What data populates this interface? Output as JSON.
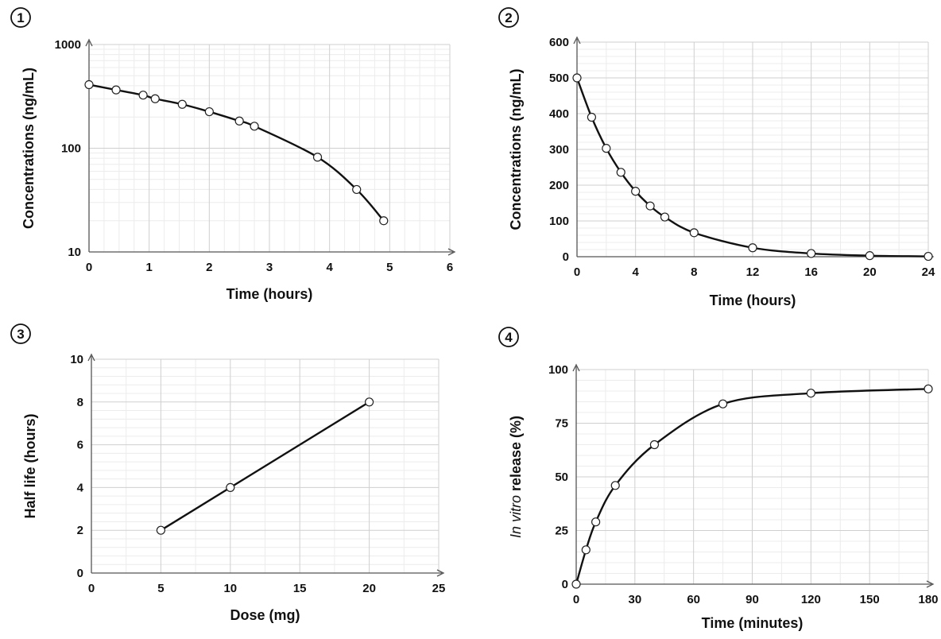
{
  "chart_data": [
    {
      "panel_label": "1",
      "type": "line",
      "xlabel": "Time (hours)",
      "ylabel": "Concentrations (ng/mL)",
      "xlim": [
        0,
        6
      ],
      "ylim": [
        10,
        1000
      ],
      "yscale": "log",
      "xticks": [
        0,
        1,
        2,
        3,
        4,
        5,
        6
      ],
      "yticks": [
        10,
        100,
        1000
      ],
      "grid": true,
      "smooth": true,
      "x": [
        0,
        0.45,
        0.9,
        1.1,
        1.55,
        2.0,
        2.5,
        2.75,
        3.8,
        4.45,
        4.9
      ],
      "y": [
        410,
        365,
        325,
        300,
        265,
        225,
        183,
        163,
        82,
        40,
        20
      ]
    },
    {
      "panel_label": "2",
      "type": "line",
      "xlabel": "Time (hours)",
      "ylabel": "Concentrations (ng/mL)",
      "xlim": [
        0,
        24
      ],
      "ylim": [
        0,
        600
      ],
      "yscale": "linear",
      "xticks": [
        0,
        4,
        8,
        12,
        16,
        20,
        24
      ],
      "yticks": [
        0,
        100,
        200,
        300,
        400,
        500,
        600
      ],
      "grid": true,
      "smooth": true,
      "x": [
        0,
        1,
        2,
        3,
        4,
        5,
        6,
        8,
        12,
        16,
        20,
        24
      ],
      "y": [
        500,
        390,
        303,
        236,
        183,
        142,
        111,
        67,
        25,
        9,
        3,
        1
      ]
    },
    {
      "panel_label": "3",
      "type": "line",
      "xlabel": "Dose (mg)",
      "ylabel": "Half life (hours)",
      "xlim": [
        0,
        25
      ],
      "ylim": [
        0,
        10
      ],
      "yscale": "linear",
      "xticks": [
        0,
        5,
        10,
        15,
        20,
        25
      ],
      "yticks": [
        0,
        2,
        4,
        6,
        8,
        10
      ],
      "grid": true,
      "smooth": false,
      "x": [
        5,
        10,
        20
      ],
      "y": [
        2,
        4,
        8
      ]
    },
    {
      "panel_label": "4",
      "type": "line",
      "xlabel": "Time (minutes)",
      "ylabel_italic": "In vitro",
      "ylabel": " release (%)",
      "xlim": [
        0,
        180
      ],
      "ylim": [
        0,
        100
      ],
      "yscale": "linear",
      "xticks": [
        0,
        30,
        60,
        90,
        120,
        150,
        180
      ],
      "yticks": [
        0,
        25,
        50,
        75,
        100
      ],
      "grid": true,
      "smooth": true,
      "x": [
        0,
        5,
        10,
        20,
        40,
        75,
        120,
        180
      ],
      "y": [
        0,
        16,
        29,
        46,
        65,
        84,
        89,
        91
      ]
    }
  ]
}
